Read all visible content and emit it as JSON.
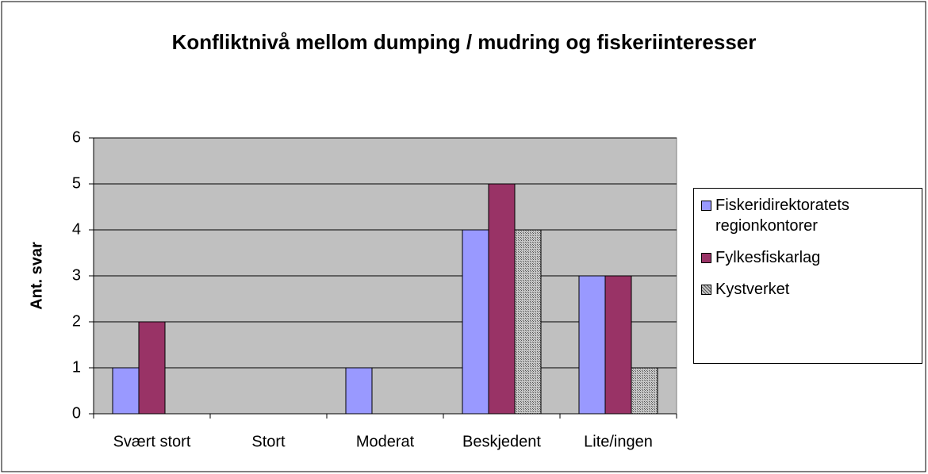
{
  "chart_data": {
    "type": "bar",
    "title": "Konfliktnivå mellom dumping / mudring og fiskeriinteresser",
    "y_label": "Ant. svar",
    "categories": [
      "Svært stort",
      "Stort",
      "Moderat",
      "Beskjedent",
      "Lite/ingen"
    ],
    "series": [
      {
        "name": "Fiskeridirektoratets regionkontorer",
        "color": "#9999ff",
        "values": [
          1,
          0,
          1,
          4,
          3
        ]
      },
      {
        "name": "Fylkesfiskarlag",
        "color": "#993366",
        "values": [
          2,
          0,
          0,
          5,
          3
        ]
      },
      {
        "name": "Kystverket",
        "color": "#808080",
        "pattern": "hatch",
        "values": [
          0,
          0,
          0,
          4,
          1
        ]
      }
    ],
    "ylim": [
      0,
      6
    ],
    "yticks": [
      0,
      1,
      2,
      3,
      4,
      5,
      6
    ],
    "grid": true,
    "legend": "right"
  }
}
